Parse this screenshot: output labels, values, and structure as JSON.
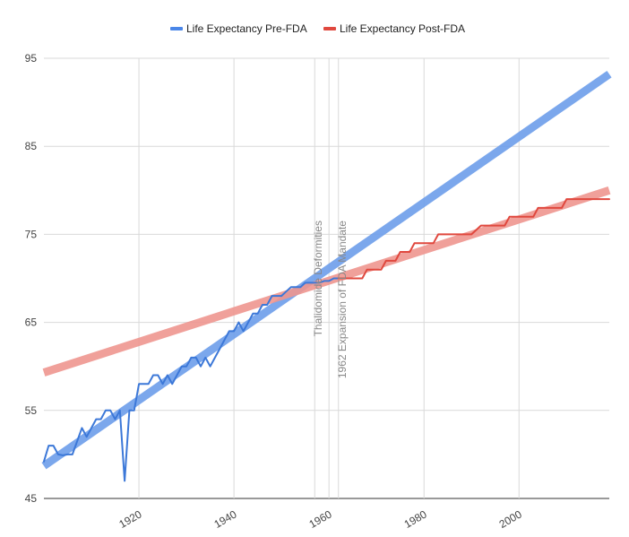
{
  "chart_data": {
    "type": "line",
    "title": "",
    "xlabel": "",
    "ylabel": "",
    "xlim": [
      1900,
      2019
    ],
    "ylim": [
      45,
      95
    ],
    "y_ticks": [
      45,
      55,
      65,
      75,
      85,
      95
    ],
    "x_ticks": [
      1920,
      1940,
      1960,
      1980,
      2000
    ],
    "grid": true,
    "legend_position": "top-center",
    "legend": [
      {
        "label": "Life Expectancy Pre-FDA",
        "color": "#4a86e8"
      },
      {
        "label": "Life Expectancy Post-FDA",
        "color": "#e0483e"
      }
    ],
    "annotations": [
      {
        "label": "Thalidomide Deformities",
        "x": 1957
      },
      {
        "label": "1962 Expansion of FDA Mandate",
        "x": 1962
      }
    ],
    "series": [
      {
        "name": "Life Expectancy Pre-FDA",
        "color": "#3c78d8",
        "x": [
          1900,
          1901,
          1902,
          1903,
          1904,
          1905,
          1906,
          1907,
          1908,
          1909,
          1910,
          1911,
          1912,
          1913,
          1914,
          1915,
          1916,
          1917,
          1918,
          1919,
          1920,
          1921,
          1922,
          1923,
          1924,
          1925,
          1926,
          1927,
          1928,
          1929,
          1930,
          1931,
          1932,
          1933,
          1934,
          1935,
          1936,
          1937,
          1938,
          1939,
          1940,
          1941,
          1942,
          1943,
          1944,
          1945,
          1946,
          1947,
          1948,
          1949,
          1950,
          1951,
          1952,
          1953,
          1954,
          1955,
          1956,
          1957,
          1958,
          1959,
          1960,
          1961,
          1962
        ],
        "y": [
          49.2,
          51.0,
          51.0,
          50.0,
          49.9,
          50.0,
          50.0,
          51.5,
          53.0,
          52.0,
          53.0,
          54.0,
          54.0,
          55.0,
          55.0,
          54.0,
          55.0,
          47.0,
          55.0,
          55.0,
          58.0,
          58.0,
          58.0,
          59.0,
          59.0,
          58.0,
          59.0,
          58.0,
          59.0,
          60.0,
          60.0,
          61.0,
          61.0,
          60.0,
          61.0,
          60.0,
          61.0,
          62.0,
          63.0,
          64.0,
          64.0,
          65.0,
          64.0,
          65.0,
          66.0,
          66.0,
          67.0,
          67.0,
          68.0,
          68.0,
          68.0,
          68.5,
          69.0,
          69.0,
          69.0,
          69.5,
          69.5,
          69.5,
          69.5,
          69.7,
          69.7,
          70.0,
          70.0
        ]
      },
      {
        "name": "Life Expectancy Post-FDA",
        "color": "#e0483e",
        "x": [
          1962,
          1963,
          1964,
          1965,
          1966,
          1967,
          1968,
          1969,
          1970,
          1971,
          1972,
          1973,
          1974,
          1975,
          1976,
          1977,
          1978,
          1979,
          1980,
          1981,
          1982,
          1983,
          1984,
          1985,
          1986,
          1987,
          1988,
          1989,
          1990,
          1991,
          1992,
          1993,
          1994,
          1995,
          1996,
          1997,
          1998,
          1999,
          2000,
          2001,
          2002,
          2003,
          2004,
          2005,
          2006,
          2007,
          2008,
          2009,
          2010,
          2011,
          2012,
          2013,
          2014,
          2015,
          2016,
          2017,
          2018,
          2019
        ],
        "y": [
          70.0,
          70.0,
          70.0,
          70.0,
          70.0,
          70.0,
          71.0,
          71.0,
          71.0,
          71.0,
          72.0,
          72.0,
          72.0,
          73.0,
          73.0,
          73.0,
          74.0,
          74.0,
          74.0,
          74.0,
          74.0,
          75.0,
          75.0,
          75.0,
          75.0,
          75.0,
          75.0,
          75.0,
          75.0,
          75.5,
          76.0,
          76.0,
          76.0,
          76.0,
          76.0,
          76.0,
          77.0,
          77.0,
          77.0,
          77.0,
          77.0,
          77.0,
          78.0,
          78.0,
          78.0,
          78.0,
          78.0,
          78.0,
          79.0,
          79.0,
          79.0,
          79.0,
          79.0,
          79.0,
          79.0,
          79.0,
          79.0,
          79.0
        ]
      }
    ],
    "trendlines": [
      {
        "series": "Life Expectancy Pre-FDA",
        "color": "#6d9eeb",
        "x": [
          1900,
          2019
        ],
        "y": [
          48.7,
          93.2
        ]
      },
      {
        "series": "Life Expectancy Post-FDA",
        "color": "#ef9690",
        "x": [
          1900,
          2019
        ],
        "y": [
          59.3,
          80.0
        ]
      }
    ]
  }
}
